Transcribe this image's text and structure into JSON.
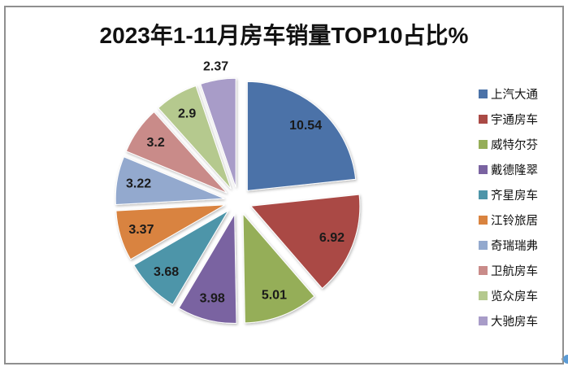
{
  "title": "2023年1-11月房车销量TOP10占比%",
  "chart_data": {
    "type": "pie",
    "title": "2023年1-11月房车销量TOP10占比%",
    "unit": "%",
    "categories": [
      "上汽大通",
      "宇通房车",
      "威特尔芬",
      "戴德隆翠",
      "齐星房车",
      "江铃旅居",
      "奇瑞瑞弗",
      "卫航房车",
      "览众房车",
      "大驰房车"
    ],
    "values": [
      10.54,
      6.92,
      5.01,
      3.98,
      3.68,
      3.37,
      3.22,
      3.2,
      2.9,
      2.37
    ],
    "labels": [
      "10.54",
      "6.92",
      "5.01",
      "3.98",
      "3.68",
      "3.37",
      "3.22",
      "3.2",
      "2.9",
      "2.37"
    ],
    "colors": [
      "#4b72a8",
      "#aa4a45",
      "#95ae58",
      "#7a63a1",
      "#4d95a9",
      "#d9833f",
      "#93a9ce",
      "#c98b89",
      "#b5c98e",
      "#a89cc8"
    ],
    "legend_position": "right",
    "start_angle_deg": 0,
    "direction": "clockwise",
    "exploded": true,
    "outside_label_indices": [
      9
    ],
    "label_color": "#1a1a1a"
  },
  "decor": {
    "frame_color": "#8f8f8f",
    "background": "#ffffff",
    "handle_color": "#5b9bd5"
  }
}
